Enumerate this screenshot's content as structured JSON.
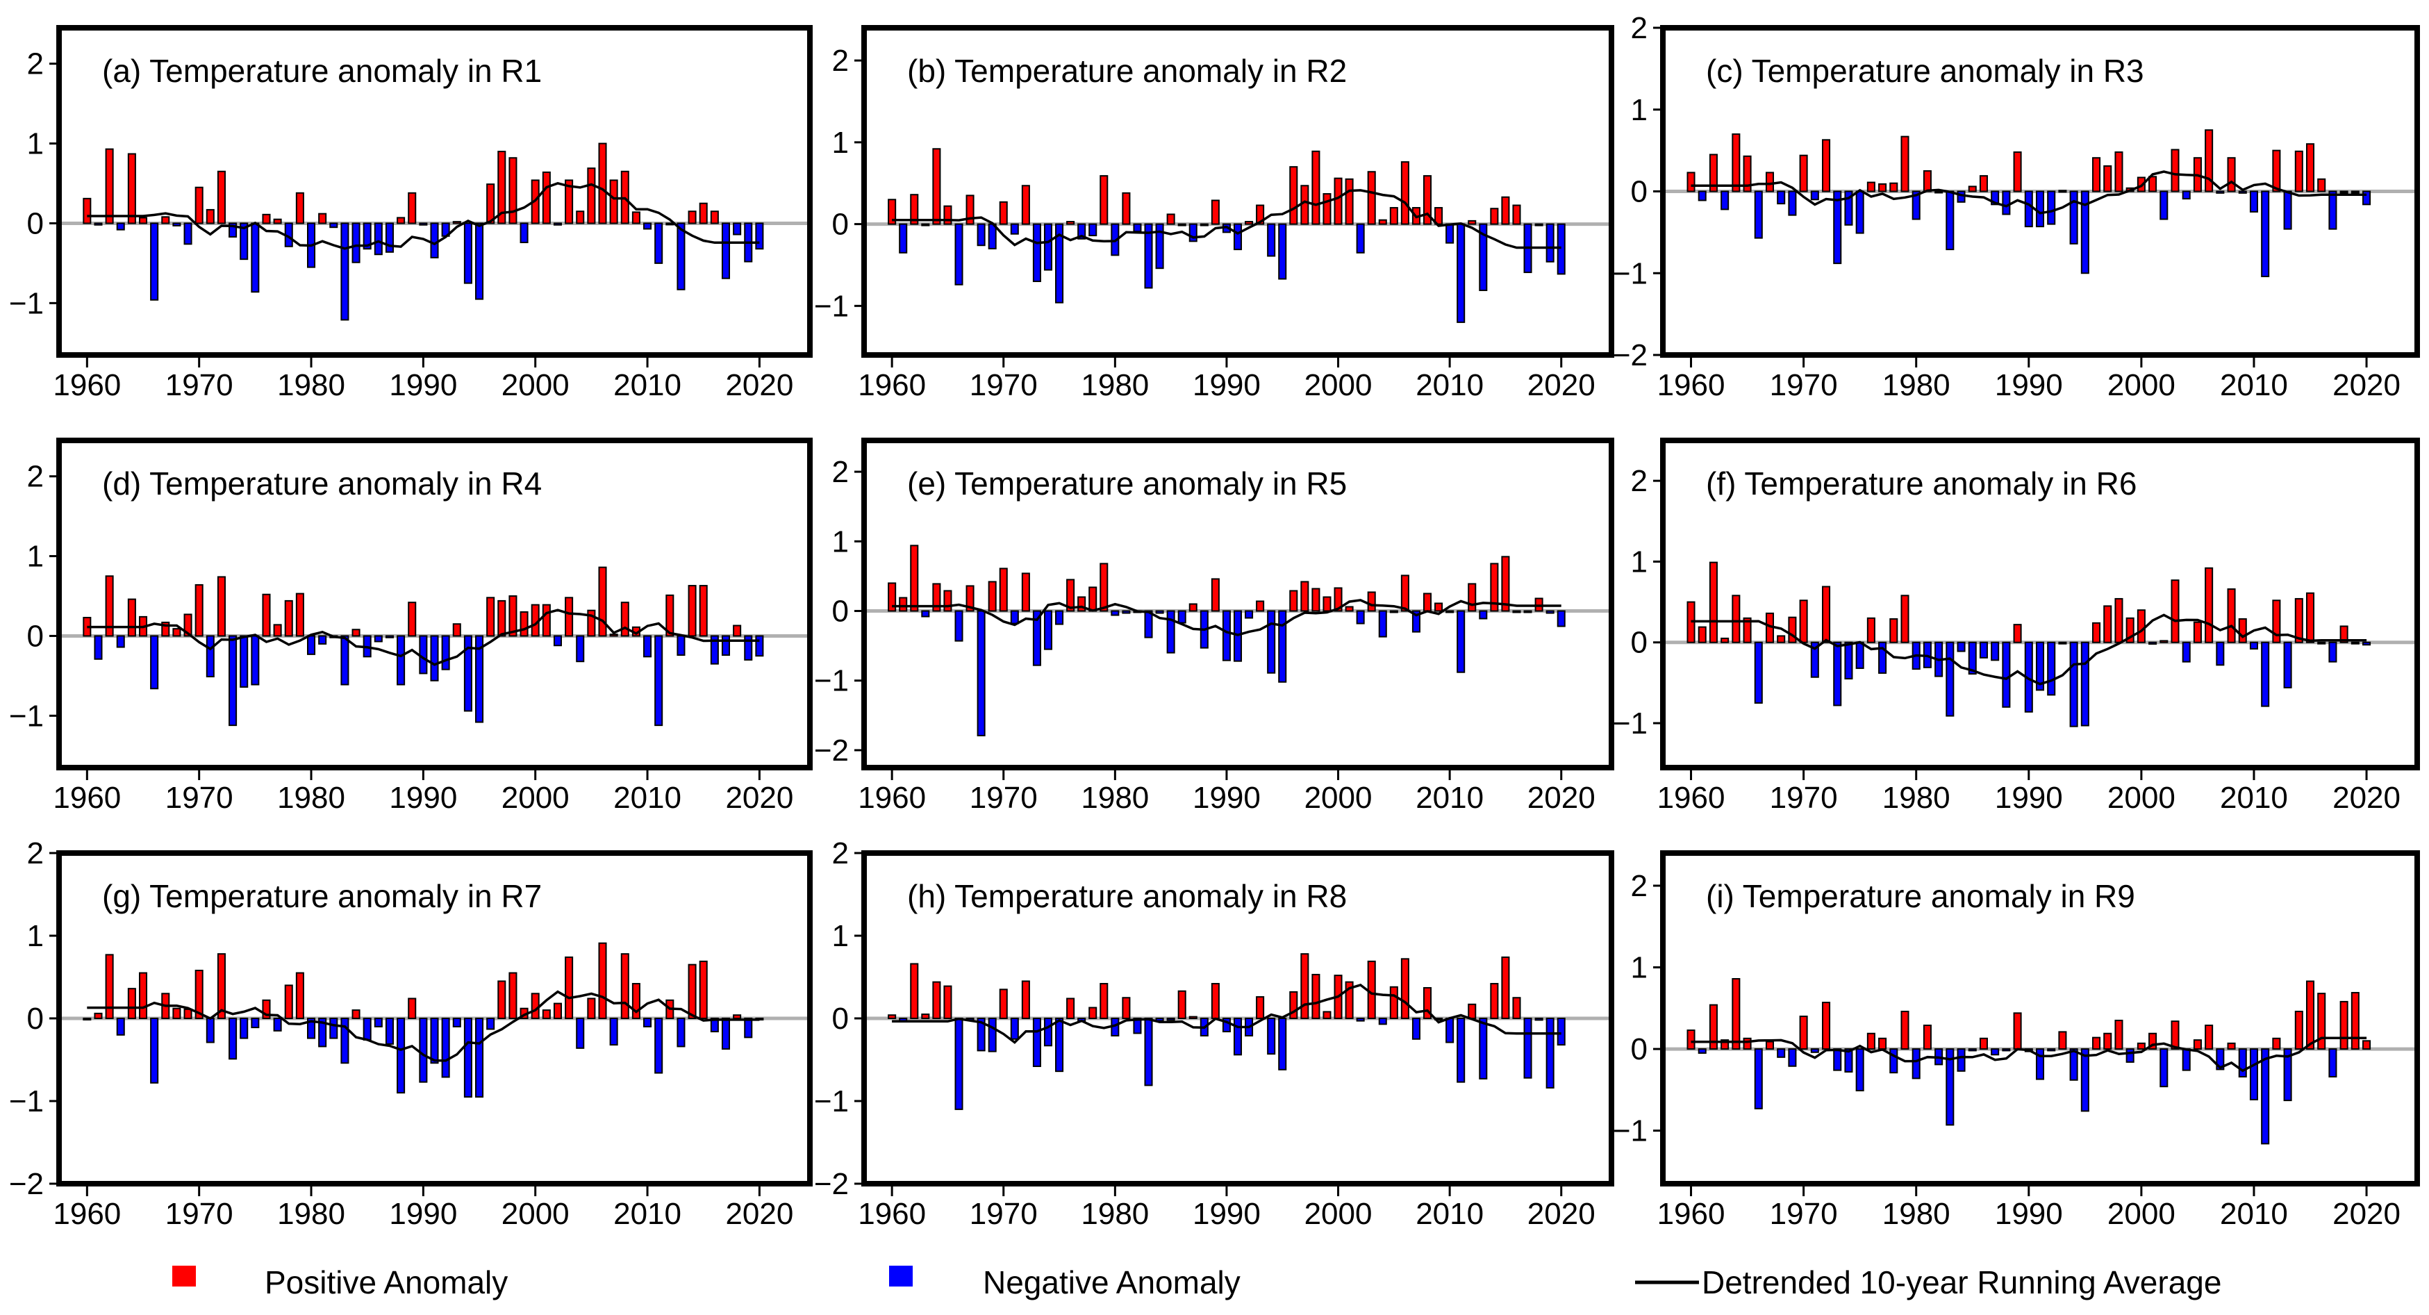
{
  "colors": {
    "positive": "#ff0000",
    "negative": "#0000ff",
    "line": "#000000",
    "zero": "#b0b0b0"
  },
  "legend": {
    "positive_label": "Positive Anomaly",
    "negative_label": "Negative Anomaly",
    "line_label": "Detrended 10-year Running Average"
  },
  "chart_data": {
    "type": "bar",
    "x_start": 1960,
    "xlim": [
      1957.5,
      2024.5
    ],
    "xticks": [
      1960,
      1970,
      1980,
      1990,
      2000,
      2010,
      2020
    ],
    "legend_position": "bottom",
    "grid": false,
    "panels": [
      {
        "title": "(a) Temperature anomaly in R1",
        "ylim": [
          -1.65,
          2.45
        ],
        "yticks": [
          -1,
          0,
          1,
          2
        ],
        "values": [
          0.31,
          -0.02,
          0.93,
          -0.08,
          0.87,
          0.07,
          -0.96,
          0.08,
          -0.03,
          -0.26,
          0.45,
          0.17,
          0.65,
          -0.17,
          -0.45,
          -0.86,
          0.11,
          0.05,
          -0.29,
          0.38,
          -0.55,
          0.12,
          -0.05,
          -1.21,
          -0.49,
          -0.32,
          -0.39,
          -0.36,
          0.07,
          0.38,
          -0.02,
          -0.43,
          -0.16,
          0.02,
          -0.75,
          -0.95,
          0.49,
          0.9,
          0.82,
          -0.24,
          0.54,
          0.64,
          -0.02,
          0.54,
          0.15,
          0.69,
          1.0,
          0.54,
          0.65,
          0.14,
          -0.07,
          -0.5,
          -0.01,
          -0.83,
          0.15,
          0.25,
          0.15,
          -0.69,
          -0.14,
          -0.48,
          -0.32
        ]
      },
      {
        "title": "(b) Temperature anomaly in R2",
        "ylim": [
          -1.6,
          2.4
        ],
        "yticks": [
          -1,
          0,
          1,
          2
        ],
        "values": [
          0.3,
          -0.35,
          0.36,
          0.0,
          0.92,
          0.22,
          -0.74,
          0.35,
          -0.26,
          -0.3,
          0.27,
          -0.12,
          0.47,
          -0.7,
          -0.56,
          -0.96,
          0.03,
          -0.18,
          -0.14,
          0.59,
          -0.38,
          0.38,
          -0.09,
          -0.78,
          -0.54,
          0.12,
          -0.01,
          -0.21,
          0.0,
          0.29,
          -0.1,
          -0.31,
          0.03,
          0.23,
          -0.39,
          -0.67,
          0.7,
          0.47,
          0.89,
          0.37,
          0.56,
          0.55,
          -0.35,
          0.64,
          0.05,
          0.2,
          0.76,
          0.2,
          0.59,
          0.2,
          -0.23,
          -1.2,
          0.04,
          -0.81,
          0.19,
          0.33,
          0.23,
          -0.59,
          0.0,
          -0.46,
          -0.61
        ]
      },
      {
        "title": "(c) Temperature anomaly in R3",
        "ylim": [
          -2,
          2
        ],
        "yticks": [
          -2,
          -1,
          0,
          1,
          2
        ],
        "values": [
          0.23,
          -0.11,
          0.45,
          -0.22,
          0.7,
          0.43,
          -0.57,
          0.23,
          -0.15,
          -0.29,
          0.44,
          -0.1,
          0.63,
          -0.88,
          -0.41,
          -0.51,
          0.11,
          0.09,
          0.1,
          0.67,
          -0.34,
          0.25,
          0.0,
          -0.71,
          -0.13,
          0.06,
          0.19,
          -0.16,
          -0.28,
          0.48,
          -0.43,
          -0.43,
          -0.4,
          0.01,
          -0.64,
          -1.0,
          0.41,
          0.31,
          0.48,
          0.04,
          0.17,
          0.18,
          -0.34,
          0.51,
          -0.09,
          0.41,
          0.75,
          -0.02,
          0.41,
          -0.02,
          -0.25,
          -1.04,
          0.5,
          -0.46,
          0.49,
          0.58,
          0.15,
          -0.46,
          0.0,
          0.0,
          -0.16
        ]
      },
      {
        "title": "(d) Temperature anomaly in R4",
        "ylim": [
          -1.65,
          2.45
        ],
        "yticks": [
          -1,
          0,
          1,
          2
        ],
        "values": [
          0.23,
          -0.29,
          0.75,
          -0.14,
          0.46,
          0.24,
          -0.66,
          0.17,
          0.09,
          0.27,
          0.64,
          -0.51,
          0.74,
          -1.12,
          -0.64,
          -0.61,
          0.52,
          0.14,
          0.44,
          0.53,
          -0.23,
          -0.1,
          -0.02,
          -0.61,
          0.08,
          -0.26,
          -0.07,
          -0.02,
          -0.61,
          0.42,
          -0.47,
          -0.56,
          -0.42,
          0.15,
          -0.94,
          -1.08,
          0.48,
          0.44,
          0.5,
          0.3,
          0.39,
          0.39,
          -0.12,
          0.48,
          -0.32,
          0.32,
          0.86,
          0.02,
          0.42,
          0.11,
          -0.26,
          -1.12,
          0.51,
          -0.24,
          0.63,
          0.63,
          -0.35,
          -0.24,
          0.13,
          -0.3,
          -0.25
        ]
      },
      {
        "title": "(e) Temperature anomaly in R5",
        "ylim": [
          -2.25,
          2.45
        ],
        "yticks": [
          -2,
          -1,
          0,
          1,
          2
        ],
        "values": [
          0.4,
          0.19,
          0.94,
          -0.08,
          0.39,
          0.29,
          -0.43,
          0.36,
          -1.79,
          0.42,
          0.61,
          -0.18,
          0.54,
          -0.78,
          -0.55,
          -0.19,
          0.45,
          0.2,
          0.34,
          0.68,
          -0.06,
          -0.03,
          0.0,
          -0.38,
          -0.03,
          -0.6,
          -0.17,
          0.1,
          -0.53,
          0.46,
          -0.71,
          -0.72,
          -0.1,
          0.14,
          -0.89,
          -1.02,
          0.29,
          0.42,
          0.32,
          0.2,
          0.33,
          0.06,
          -0.18,
          0.27,
          -0.37,
          0.0,
          0.51,
          -0.3,
          0.25,
          0.11,
          -0.02,
          -0.88,
          0.39,
          -0.11,
          0.68,
          0.78,
          -0.02,
          -0.02,
          0.18,
          -0.03,
          -0.22
        ]
      },
      {
        "title": "(f) Temperature anomaly in R6",
        "ylim": [
          -1.55,
          2.5
        ],
        "yticks": [
          -1,
          0,
          1,
          2
        ],
        "values": [
          0.5,
          0.19,
          0.99,
          0.05,
          0.58,
          0.3,
          -0.75,
          0.36,
          0.08,
          0.31,
          0.52,
          -0.43,
          0.69,
          -0.78,
          -0.45,
          -0.32,
          0.3,
          -0.38,
          0.29,
          0.58,
          -0.33,
          -0.31,
          -0.42,
          -0.91,
          -0.11,
          -0.39,
          -0.19,
          -0.22,
          -0.8,
          0.22,
          -0.86,
          -0.59,
          -0.65,
          0.0,
          -1.04,
          -1.03,
          0.24,
          0.45,
          0.54,
          0.3,
          0.4,
          -0.02,
          0.02,
          0.77,
          -0.24,
          0.25,
          0.92,
          -0.28,
          0.66,
          0.29,
          -0.08,
          -0.79,
          0.52,
          -0.56,
          0.54,
          0.61,
          0.0,
          -0.24,
          0.2,
          0.0,
          -0.03
        ]
      },
      {
        "title": "(g) Temperature anomaly in R7",
        "ylim": [
          -2,
          2
        ],
        "yticks": [
          -2,
          -1,
          0,
          1,
          2
        ],
        "values": [
          0.0,
          0.06,
          0.77,
          -0.2,
          0.36,
          0.55,
          -0.78,
          0.3,
          0.12,
          0.11,
          0.58,
          -0.29,
          0.78,
          -0.49,
          -0.24,
          -0.11,
          0.22,
          -0.15,
          0.4,
          0.55,
          -0.24,
          -0.34,
          -0.24,
          -0.54,
          0.1,
          -0.26,
          -0.1,
          -0.31,
          -0.9,
          0.24,
          -0.77,
          -0.54,
          -0.71,
          -0.1,
          -0.95,
          -0.95,
          -0.13,
          0.45,
          0.55,
          0.12,
          0.3,
          0.1,
          0.18,
          0.74,
          -0.36,
          0.24,
          0.91,
          -0.32,
          0.78,
          0.42,
          -0.1,
          -0.66,
          0.22,
          -0.34,
          0.65,
          0.69,
          -0.16,
          -0.37,
          0.04,
          -0.23,
          0.0
        ]
      },
      {
        "title": "(h) Temperature anomaly in R8",
        "ylim": [
          -2,
          2
        ],
        "yticks": [
          -2,
          -1,
          0,
          1,
          2
        ],
        "values": [
          0.04,
          -0.03,
          0.66,
          0.05,
          0.44,
          0.39,
          -1.1,
          -0.02,
          -0.39,
          -0.4,
          0.35,
          -0.25,
          0.45,
          -0.58,
          -0.33,
          -0.64,
          0.24,
          -0.03,
          0.13,
          0.42,
          -0.21,
          0.25,
          -0.18,
          -0.81,
          -0.03,
          -0.02,
          0.33,
          0.02,
          -0.21,
          0.42,
          -0.16,
          -0.44,
          -0.21,
          0.26,
          -0.43,
          -0.62,
          0.32,
          0.78,
          0.53,
          0.08,
          0.52,
          0.44,
          -0.03,
          0.69,
          -0.07,
          0.38,
          0.72,
          -0.25,
          0.37,
          0.0,
          -0.29,
          -0.77,
          0.17,
          -0.73,
          0.42,
          0.74,
          0.25,
          -0.72,
          -0.02,
          -0.84,
          -0.32
        ]
      },
      {
        "title": "(i) Temperature anomaly in R9",
        "ylim": [
          -1.65,
          2.4
        ],
        "yticks": [
          -1,
          0,
          1,
          2
        ],
        "values": [
          0.23,
          -0.05,
          0.54,
          0.11,
          0.86,
          0.13,
          -0.73,
          0.09,
          -0.1,
          -0.21,
          0.4,
          -0.04,
          0.57,
          -0.26,
          -0.28,
          -0.51,
          0.19,
          0.13,
          -0.29,
          0.46,
          -0.36,
          0.29,
          -0.19,
          -0.93,
          -0.27,
          -0.02,
          0.13,
          -0.07,
          -0.02,
          0.44,
          -0.03,
          -0.37,
          -0.02,
          0.21,
          -0.38,
          -0.76,
          0.14,
          0.19,
          0.35,
          -0.16,
          0.07,
          0.19,
          -0.46,
          0.34,
          -0.26,
          0.11,
          0.29,
          -0.25,
          0.07,
          -0.34,
          -0.62,
          -1.16,
          0.13,
          -0.63,
          0.46,
          0.83,
          0.68,
          -0.34,
          0.58,
          0.69,
          0.1
        ]
      }
    ]
  }
}
